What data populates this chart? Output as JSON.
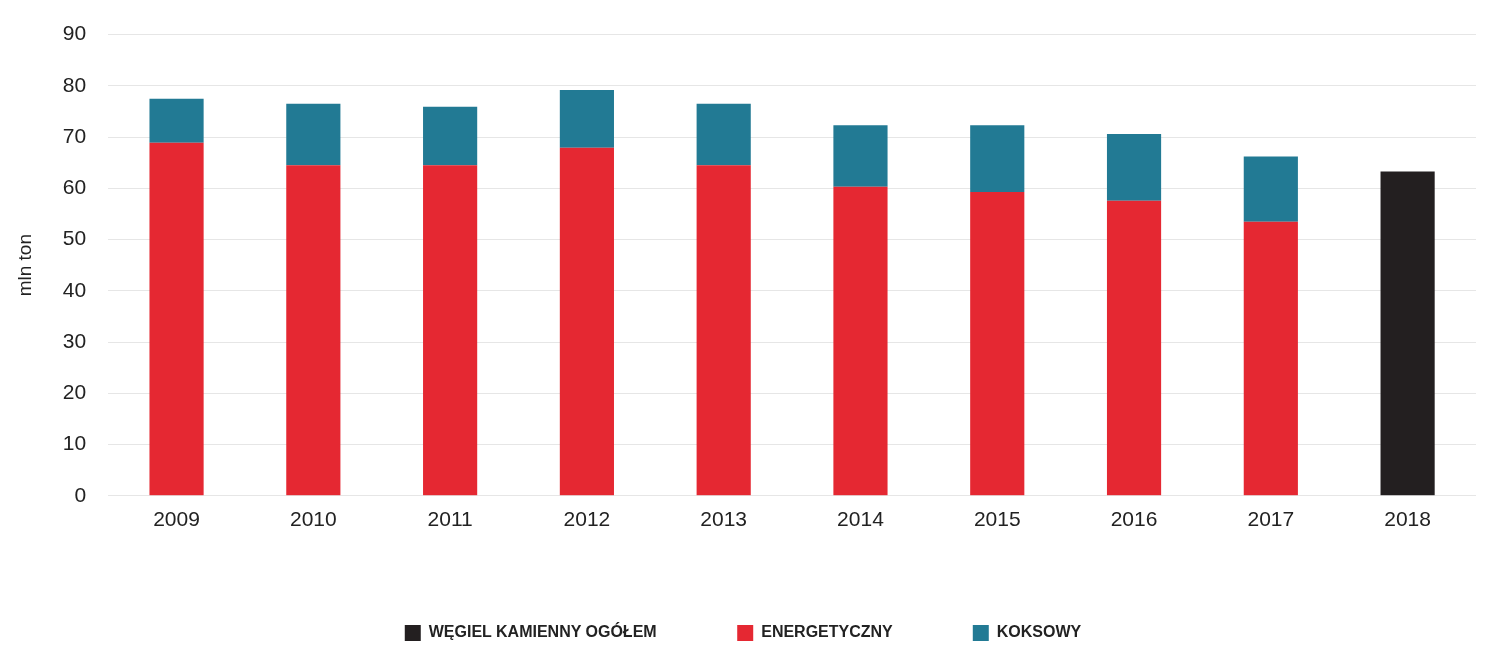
{
  "chart_data": {
    "type": "bar",
    "stacked": true,
    "ylabel": "mln ton",
    "categories": [
      "2009",
      "2010",
      "2011",
      "2012",
      "2013",
      "2014",
      "2015",
      "2016",
      "2017",
      "2018"
    ],
    "series": [
      {
        "name": "WĘGIEL KAMIENNY OGÓŁEM",
        "color": "#231f20",
        "values": [
          null,
          null,
          null,
          null,
          null,
          null,
          null,
          null,
          null,
          63.3
        ]
      },
      {
        "name": "ENERGETYCZNY",
        "color": "#e52832",
        "values": [
          68.9,
          64.5,
          64.5,
          67.9,
          64.5,
          60.3,
          59.3,
          57.6,
          53.5,
          null
        ]
      },
      {
        "name": "KOKSOWY",
        "color": "#227a94",
        "values": [
          8.6,
          12.0,
          11.4,
          11.3,
          12.0,
          12.0,
          13.0,
          13.0,
          12.7,
          null
        ]
      }
    ],
    "ylim": [
      0,
      90
    ],
    "yticks": [
      0,
      10,
      20,
      30,
      40,
      50,
      60,
      70,
      80,
      90
    ],
    "grid": "y",
    "legend": "bottom"
  }
}
